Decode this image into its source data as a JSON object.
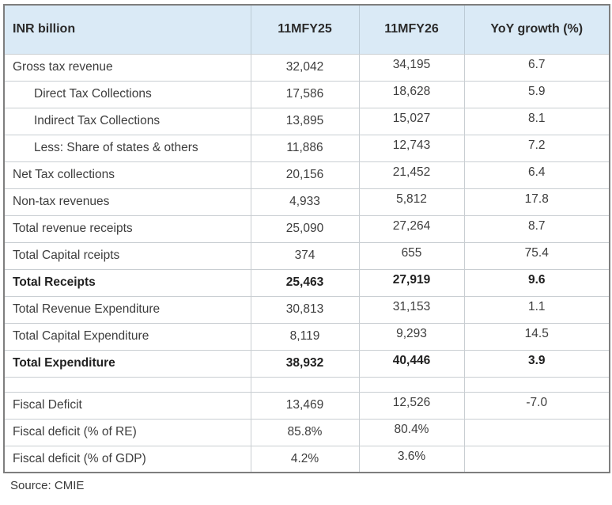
{
  "chart_data": {
    "type": "table",
    "title": "",
    "unit_header": "INR billion",
    "columns": [
      "INR billion",
      "11MFY25",
      "11MFY26",
      "YoY growth (%)"
    ],
    "rows": [
      {
        "label": "Gross tax revenue",
        "values": [
          "32,042",
          "34,195",
          "6.7"
        ],
        "indent": false,
        "bold": false,
        "spacer": false
      },
      {
        "label": "Direct Tax Collections",
        "values": [
          "17,586",
          "18,628",
          "5.9"
        ],
        "indent": true,
        "bold": false,
        "spacer": false
      },
      {
        "label": "Indirect Tax Collections",
        "values": [
          "13,895",
          "15,027",
          "8.1"
        ],
        "indent": true,
        "bold": false,
        "spacer": false
      },
      {
        "label": "Less: Share of states & others",
        "values": [
          "11,886",
          "12,743",
          "7.2"
        ],
        "indent": true,
        "bold": false,
        "spacer": false
      },
      {
        "label": "Net Tax collections",
        "values": [
          "20,156",
          "21,452",
          "6.4"
        ],
        "indent": false,
        "bold": false,
        "spacer": false
      },
      {
        "label": "Non-tax revenues",
        "values": [
          "4,933",
          "5,812",
          "17.8"
        ],
        "indent": false,
        "bold": false,
        "spacer": false
      },
      {
        "label": "Total revenue receipts",
        "values": [
          "25,090",
          "27,264",
          "8.7"
        ],
        "indent": false,
        "bold": false,
        "spacer": false
      },
      {
        "label": "Total Capital rceipts",
        "values": [
          "374",
          "655",
          "75.4"
        ],
        "indent": false,
        "bold": false,
        "spacer": false
      },
      {
        "label": "Total Receipts",
        "values": [
          "25,463",
          "27,919",
          "9.6"
        ],
        "indent": false,
        "bold": true,
        "spacer": false
      },
      {
        "label": "Total Revenue Expenditure",
        "values": [
          "30,813",
          "31,153",
          "1.1"
        ],
        "indent": false,
        "bold": false,
        "spacer": false
      },
      {
        "label": "Total Capital Expenditure",
        "values": [
          "8,119",
          "9,293",
          "14.5"
        ],
        "indent": false,
        "bold": false,
        "spacer": false
      },
      {
        "label": "Total Expenditure",
        "values": [
          "38,932",
          "40,446",
          "3.9"
        ],
        "indent": false,
        "bold": true,
        "spacer": false
      },
      {
        "label": "",
        "values": [
          "",
          "",
          ""
        ],
        "indent": false,
        "bold": false,
        "spacer": true
      },
      {
        "label": "Fiscal Deficit",
        "values": [
          "13,469",
          "12,526",
          "-7.0"
        ],
        "indent": false,
        "bold": false,
        "spacer": false
      },
      {
        "label": "Fiscal deficit (% of RE)",
        "values": [
          "85.8%",
          "80.4%",
          ""
        ],
        "indent": false,
        "bold": false,
        "spacer": false
      },
      {
        "label": "Fiscal deficit (% of GDP)",
        "values": [
          "4.2%",
          "3.6%",
          ""
        ],
        "indent": false,
        "bold": false,
        "spacer": false
      }
    ],
    "layout": {
      "grid": true,
      "header_row": true
    }
  },
  "source": "Source: CMIE",
  "colors": {
    "header_bg": "#daeaf6",
    "grid_line": "#c9ced2",
    "outer_border": "#7e7e7e",
    "header_text": "#2b2b2b",
    "body_text": "#3d3d3d"
  }
}
